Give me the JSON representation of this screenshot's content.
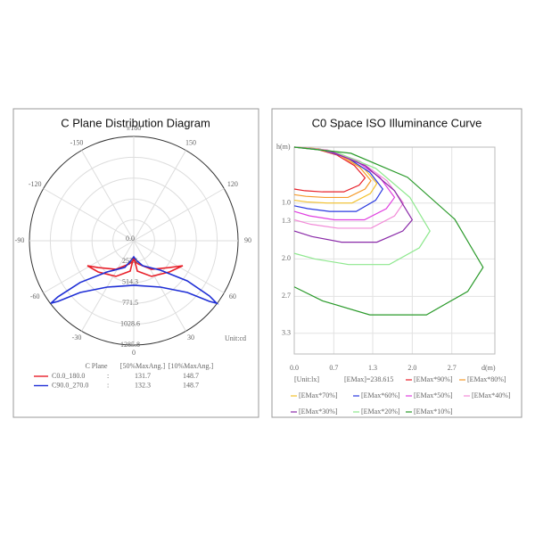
{
  "chart_data": [
    {
      "type": "polar",
      "title": "C Plane Distribution Diagram",
      "unit_label": "Unit:cd",
      "rlim": [
        0,
        1285.8
      ],
      "rticks": [
        {
          "value": 0,
          "label": "0.0"
        },
        257.1,
        514.3,
        771.5,
        1028.6,
        1285.8
      ],
      "angle_ticks": [
        {
          "value": 180,
          "label": "±180"
        },
        150,
        120,
        90,
        60,
        30,
        0,
        -30,
        -60,
        -90,
        -120,
        -150
      ],
      "grid": true,
      "legend_header": [
        "C Plane",
        "[50%MaxAng.]",
        "[10%MaxAng.]"
      ],
      "legend_separator": ":",
      "series": [
        {
          "name": "C0.0_180.0",
          "color": "#e8202a",
          "angles": [
            0,
            6.7,
            26.6,
            48.8,
            63.0,
            53.1,
            32.0,
            10.9,
            0,
            -10.9,
            -32.0,
            -53.1,
            -61.7,
            -48.8,
            -26.6,
            -6.7,
            0
          ],
          "values": [
            198,
            376,
            491,
            584,
            678,
            550,
            415,
            291,
            242,
            291,
            415,
            550,
            649,
            584,
            491,
            376,
            198
          ],
          "beam_angles": [
            131.7,
            148.7
          ]
        },
        {
          "name": "C90.0_270.0",
          "color": "#1f2fd6",
          "angles": [
            0,
            30.0,
            46.0,
            51.3,
            53.0,
            53.9,
            53.1,
            42.3,
            19.7,
            7.8,
            0,
            -7.8,
            -18.4,
            -40.6,
            -52.1,
            -53.5,
            -53.0,
            -51.3,
            -46.0,
            -30.0,
            0
          ],
          "values": [
            549,
            660,
            917,
            1196,
            1279,
            1156,
            824,
            490,
            327,
            244,
            198,
            244,
            347,
            507,
            837,
            1163,
            1279,
            1196,
            917,
            660,
            549
          ],
          "beam_angles": [
            132.3,
            148.7
          ]
        }
      ]
    },
    {
      "type": "iso",
      "title": "C0 Space ISO Illuminance Curve",
      "xlabel": "d(m)",
      "ylabel": "h(m)",
      "unit_label": "[Unit:lx]",
      "emax_label": "[EMax]=238.615",
      "xlim": [
        0,
        3.4
      ],
      "ylim": [
        0,
        3.7
      ],
      "y_inverted": true,
      "grid": true,
      "xticks": [
        {
          "value": 0,
          "label": "0.0"
        },
        {
          "value": 0.67,
          "label": "0.7"
        },
        {
          "value": 1.33,
          "label": "1.3"
        },
        {
          "value": 2,
          "label": "2.0"
        },
        {
          "value": 2.67,
          "label": "2.7"
        }
      ],
      "yticks": [
        {
          "value": 1,
          "label": "1.0"
        },
        {
          "value": 1.33,
          "label": "1.3"
        },
        {
          "value": 2,
          "label": "2.0"
        },
        {
          "value": 2.67,
          "label": "2.7"
        },
        {
          "value": 3.33,
          "label": "3.3"
        }
      ],
      "series": [
        {
          "name": "[EMax*90%]",
          "color": "#e8202a",
          "x": [
            0,
            0.36,
            0.72,
            1.02,
            1.2,
            1.1,
            0.84,
            0.48,
            0.18,
            0
          ],
          "y": [
            0,
            0.03,
            0.14,
            0.33,
            0.55,
            0.68,
            0.8,
            0.8,
            0.78,
            0.75
          ]
        },
        {
          "name": "[EMax*80%]",
          "color": "#f59a2a",
          "x": [
            0,
            0.39,
            0.78,
            1.11,
            1.3,
            1.2,
            0.91,
            0.52,
            0.2,
            0
          ],
          "y": [
            0,
            0.03,
            0.15,
            0.36,
            0.6,
            0.75,
            0.9,
            0.9,
            0.88,
            0.85
          ]
        },
        {
          "name": "[EMax*70%]",
          "color": "#f3c12c",
          "x": [
            0,
            0.42,
            0.84,
            1.19,
            1.4,
            1.29,
            0.98,
            0.56,
            0.21,
            0
          ],
          "y": [
            0,
            0.03,
            0.16,
            0.39,
            0.65,
            0.83,
            1.0,
            1.0,
            0.98,
            0.95
          ]
        },
        {
          "name": "[EMax*60%]",
          "color": "#2a3ae0",
          "x": [
            0,
            0.45,
            0.9,
            1.28,
            1.5,
            1.38,
            1.05,
            0.6,
            0.23,
            0
          ],
          "y": [
            0,
            0.04,
            0.19,
            0.45,
            0.75,
            0.95,
            1.15,
            1.15,
            1.1,
            1.05
          ]
        },
        {
          "name": "[EMax*50%]",
          "color": "#e040e0",
          "x": [
            0,
            0.51,
            1.02,
            1.45,
            1.7,
            1.56,
            1.19,
            0.68,
            0.26,
            0
          ],
          "y": [
            0,
            0.05,
            0.23,
            0.54,
            0.9,
            1.1,
            1.3,
            1.3,
            1.23,
            1.15
          ]
        },
        {
          "name": "[EMax*40%]",
          "color": "#f28bd8",
          "x": [
            0,
            0.56,
            1.11,
            1.57,
            1.85,
            1.7,
            1.3,
            0.74,
            0.28,
            0
          ],
          "y": [
            0,
            0.05,
            0.25,
            0.6,
            1.0,
            1.23,
            1.45,
            1.45,
            1.38,
            1.3
          ]
        },
        {
          "name": "[EMax*30%]",
          "color": "#8a2aa8",
          "x": [
            0,
            0.6,
            1.2,
            1.7,
            2.0,
            1.84,
            1.4,
            0.8,
            0.3,
            0
          ],
          "y": [
            0,
            0.07,
            0.33,
            0.78,
            1.3,
            1.5,
            1.7,
            1.7,
            1.6,
            1.5
          ]
        },
        {
          "name": "[EMax*20%]",
          "color": "#8ee88e",
          "x": [
            0,
            0.69,
            1.38,
            1.96,
            2.3,
            2.12,
            1.61,
            0.92,
            0.35,
            0
          ],
          "y": [
            0,
            0.08,
            0.38,
            0.9,
            1.5,
            1.8,
            2.1,
            2.1,
            2.0,
            1.9
          ]
        },
        {
          "name": "[EMax*10%]",
          "color": "#2a9a2a",
          "x": [
            0,
            0.96,
            1.92,
            2.72,
            3.2,
            2.94,
            2.24,
            1.28,
            0.48,
            0
          ],
          "y": [
            0,
            0.11,
            0.54,
            1.29,
            2.15,
            2.58,
            3.0,
            3.0,
            2.75,
            2.5
          ]
        }
      ]
    }
  ]
}
